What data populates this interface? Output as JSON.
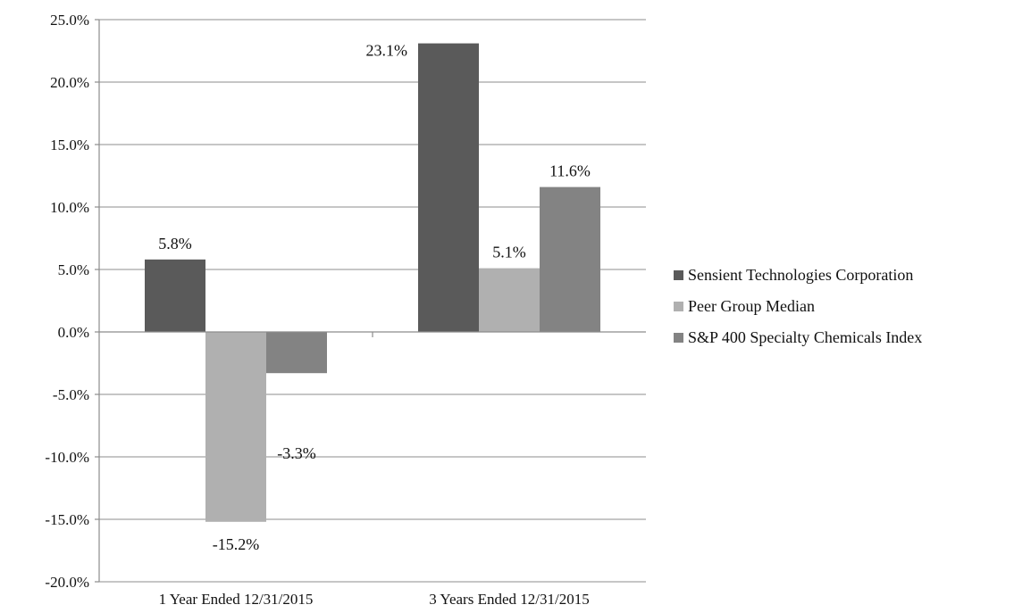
{
  "chart_data": {
    "type": "bar",
    "title": "",
    "xlabel": "",
    "ylabel": "",
    "categories": [
      "1 Year Ended 12/31/2015",
      "3 Years Ended 12/31/2015"
    ],
    "ylim": [
      -20,
      25
    ],
    "ytick_step": 5,
    "ytick_labels": [
      "25.0%",
      "20.0%",
      "15.0%",
      "10.0%",
      "5.0%",
      "0.0%",
      "-5.0%",
      "-10.0%",
      "-15.0%",
      "-20.0%"
    ],
    "grid": true,
    "legend_position": "right",
    "series": [
      {
        "name": "Sensient Technologies Corporation",
        "color": "#5a5a5a",
        "values": [
          5.8,
          23.1
        ],
        "labels": [
          "5.8%",
          "23.1%"
        ]
      },
      {
        "name": "Peer Group Median",
        "color": "#b0b0b0",
        "values": [
          -15.2,
          5.1
        ],
        "labels": [
          "-15.2%",
          "5.1%"
        ]
      },
      {
        "name": "S&P 400 Specialty Chemicals Index",
        "color": "#838383",
        "values": [
          -3.3,
          11.6
        ],
        "labels": [
          "-3.3%",
          "11.6%"
        ]
      }
    ]
  }
}
